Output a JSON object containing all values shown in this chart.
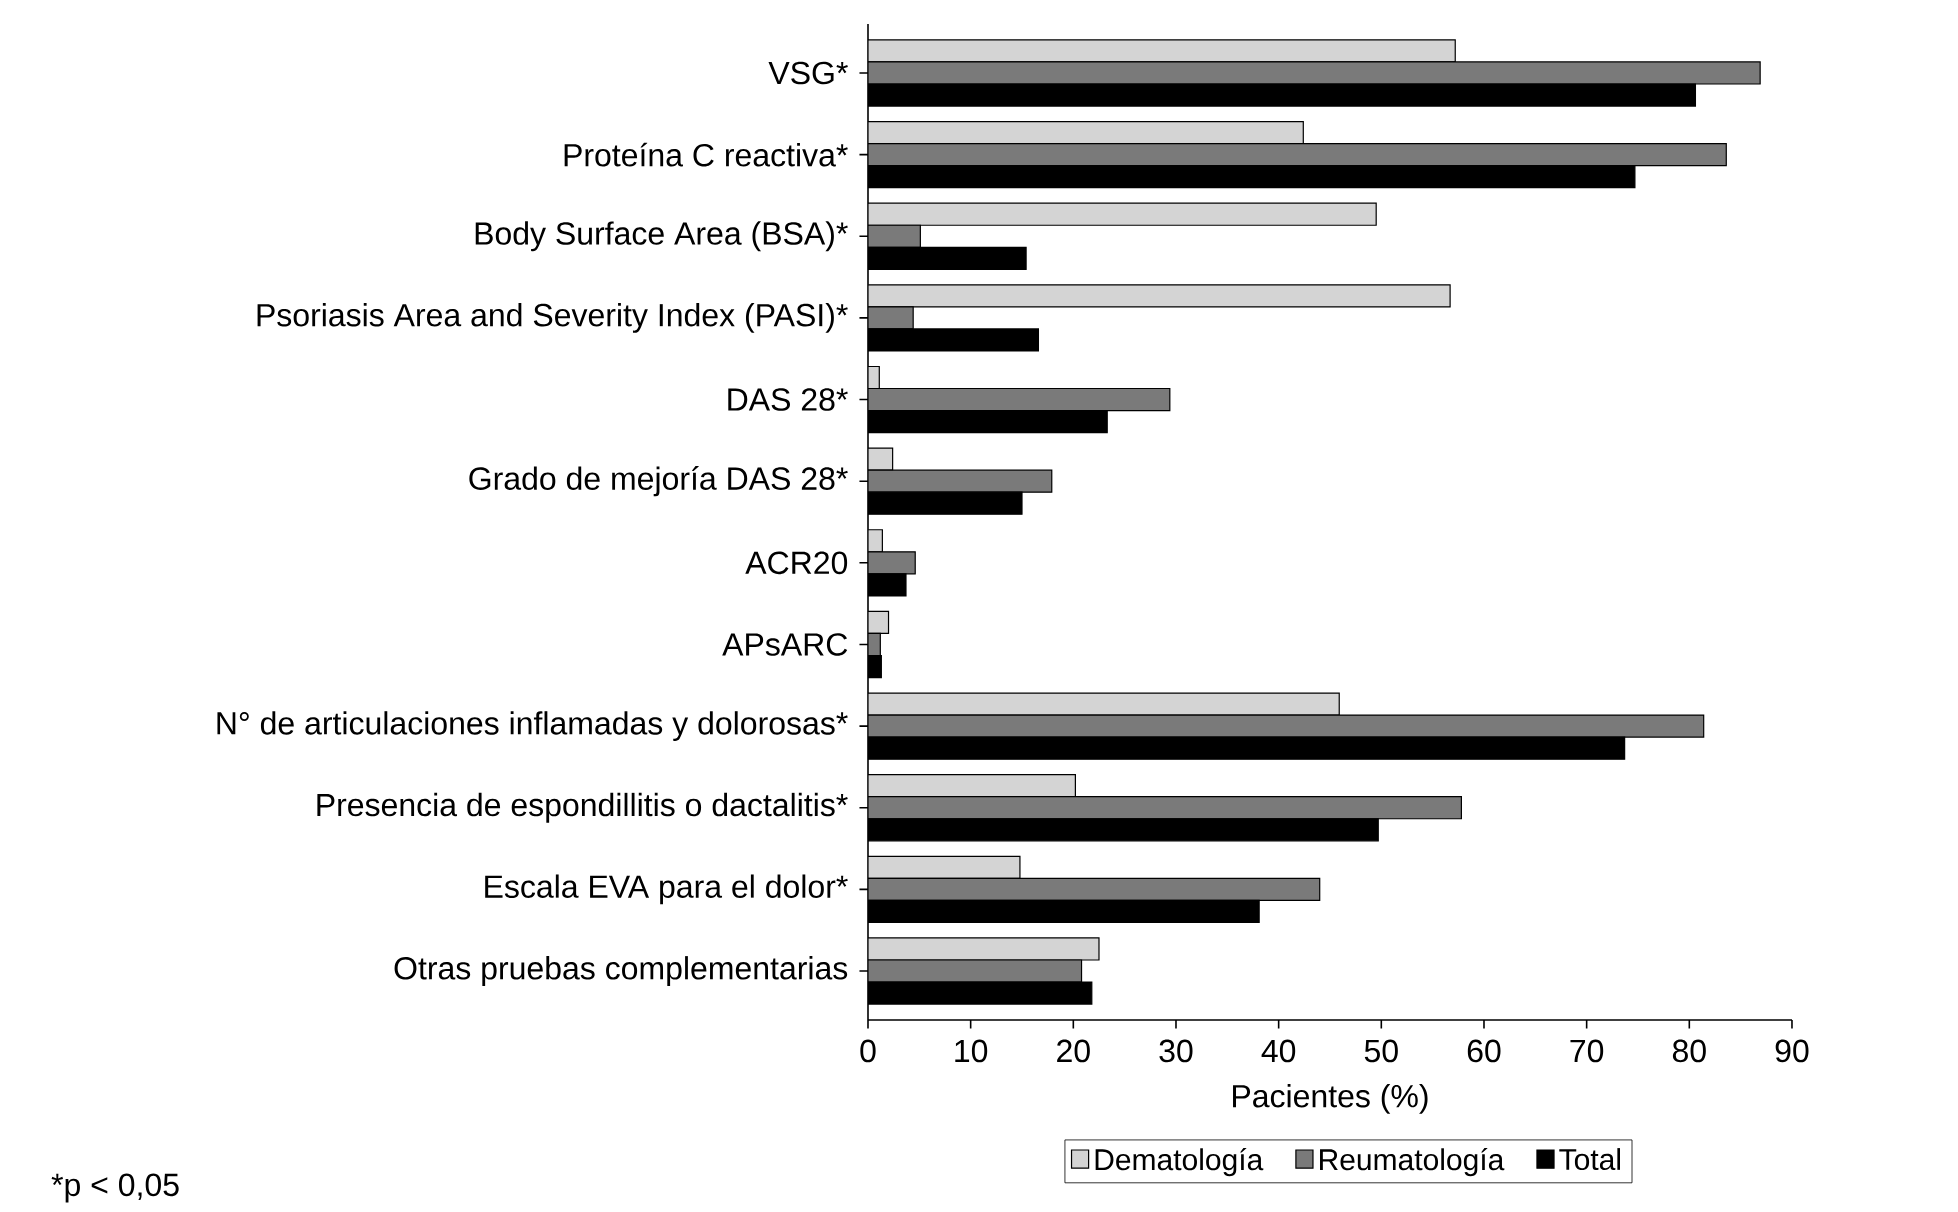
{
  "chart_data": {
    "type": "bar",
    "orientation": "horizontal",
    "categories": [
      "VSG*",
      "Proteína C reactiva*",
      "Body Surface Area (BSA)*",
      "Psoriasis Area and Severity Index (PASI)*",
      "DAS 28*",
      "Grado de mejoría DAS 28*",
      "ACR20",
      "APsARC",
      "N° de articulaciones inflamadas y dolorosas*",
      "Presencia de espondillitis o dactalitis*",
      "Escala EVA para el dolor*",
      "Otras pruebas complementarias"
    ],
    "series": [
      {
        "name": "Dematología",
        "color": "#d4d4d4",
        "values": [
          57.2,
          42.4,
          49.5,
          56.7,
          1.1,
          2.4,
          1.4,
          2.0,
          45.9,
          20.2,
          14.8,
          22.5
        ]
      },
      {
        "name": "Reumatología",
        "color": "#7a7a7a",
        "values": [
          86.9,
          83.6,
          5.1,
          4.4,
          29.4,
          17.9,
          4.6,
          1.2,
          81.4,
          57.8,
          44.0,
          20.8
        ]
      },
      {
        "name": "Total",
        "color": "#000000",
        "values": [
          80.6,
          74.7,
          15.4,
          16.6,
          23.3,
          15.0,
          3.7,
          1.3,
          73.7,
          49.7,
          38.1,
          21.8
        ]
      }
    ],
    "xlabel": "Pacientes (%)",
    "xlim": [
      0,
      90
    ],
    "xticks": [
      0,
      10,
      20,
      30,
      40,
      50,
      60,
      70,
      80,
      90
    ],
    "legend": "bottom",
    "annotations": [
      "*p < 0,05"
    ]
  }
}
